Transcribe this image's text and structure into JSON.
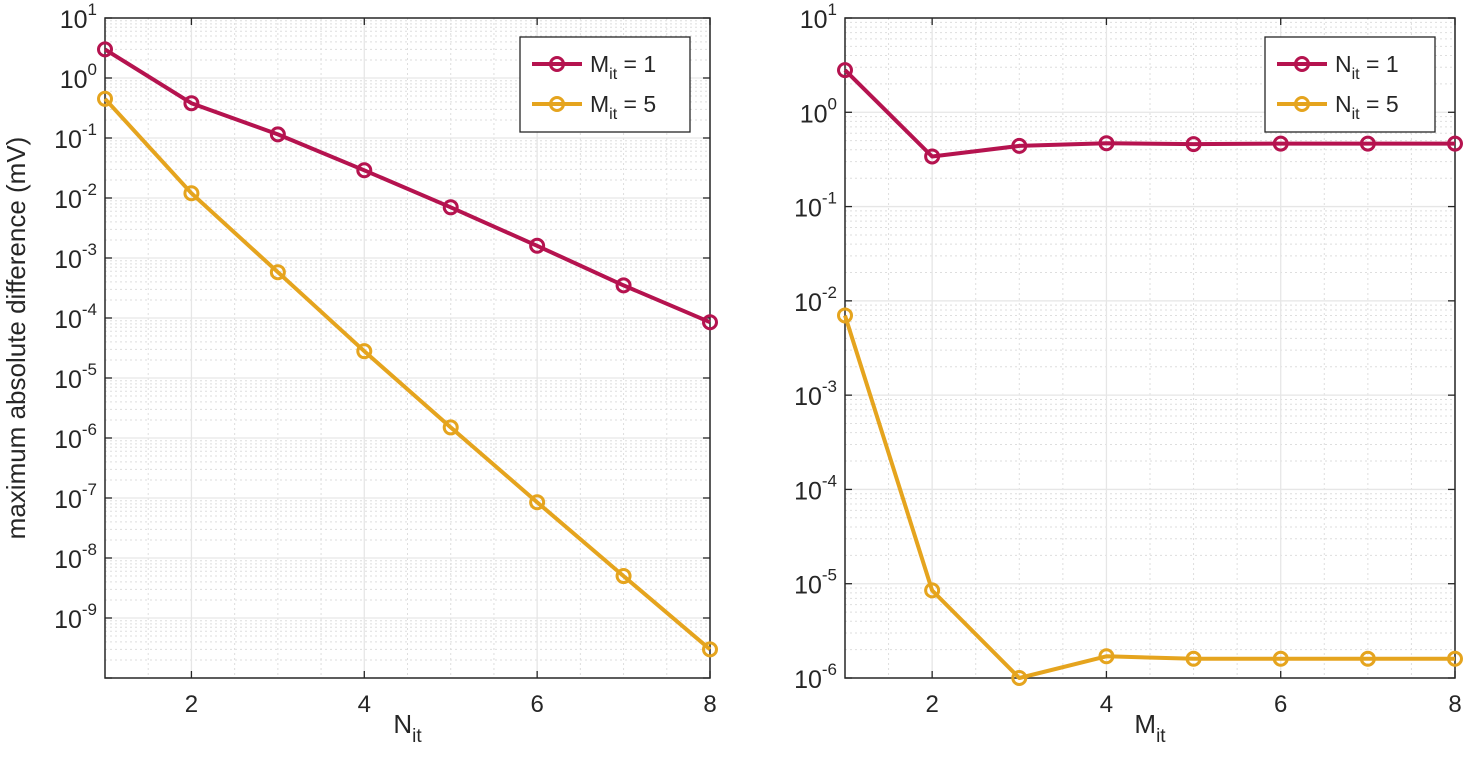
{
  "chart_data": [
    {
      "type": "line",
      "xlabel": {
        "base": "N",
        "sub": "it"
      },
      "ylabel": "maximum absolute difference (mV)",
      "yscale": "log",
      "xlim": [
        1,
        8
      ],
      "ylim_exp": [
        -10,
        1
      ],
      "xticks": [
        "2",
        "4",
        "6",
        "8"
      ],
      "yticks": [
        "10",
        "10",
        "10",
        "10",
        "10",
        "10",
        "10",
        "10",
        "10",
        "10",
        "10"
      ],
      "yticks_exp": [
        "1",
        "0",
        "-1",
        "-2",
        "-3",
        "-4",
        "-5",
        "-6",
        "-7",
        "-8",
        "-9"
      ],
      "grid": true,
      "legend_position": "top-right",
      "series": [
        {
          "name": {
            "base": "M",
            "sub": "it",
            "rest": " = 1"
          },
          "color": "#b5134f",
          "x": [
            1,
            2,
            3,
            4,
            5,
            6,
            7,
            8
          ],
          "y": [
            3.0,
            0.38,
            0.115,
            0.029,
            0.007,
            0.0016,
            0.00035,
            8.5e-05
          ]
        },
        {
          "name": {
            "base": "M",
            "sub": "it",
            "rest": " = 5"
          },
          "color": "#e5a41e",
          "x": [
            1,
            2,
            3,
            4,
            5,
            6,
            7,
            8
          ],
          "y": [
            0.45,
            0.012,
            0.00058,
            2.8e-05,
            1.5e-06,
            8.5e-08,
            5e-09,
            3e-10
          ]
        }
      ]
    },
    {
      "type": "line",
      "xlabel": {
        "base": "M",
        "sub": "it"
      },
      "ylabel": "",
      "yscale": "log",
      "xlim": [
        1,
        8
      ],
      "ylim_exp": [
        -6,
        1
      ],
      "xticks": [
        "2",
        "4",
        "6",
        "8"
      ],
      "yticks": [
        "10",
        "10",
        "10",
        "10",
        "10",
        "10",
        "10",
        "10"
      ],
      "yticks_exp": [
        "1",
        "0",
        "-1",
        "-2",
        "-3",
        "-4",
        "-5",
        "-6"
      ],
      "grid": true,
      "legend_position": "top-right",
      "series": [
        {
          "name": {
            "base": "N",
            "sub": "it",
            "rest": " = 1"
          },
          "color": "#b5134f",
          "x": [
            1,
            2,
            3,
            4,
            5,
            6,
            7,
            8
          ],
          "y": [
            2.8,
            0.34,
            0.44,
            0.47,
            0.46,
            0.465,
            0.465,
            0.465
          ]
        },
        {
          "name": {
            "base": "N",
            "sub": "it",
            "rest": " = 5"
          },
          "color": "#e5a41e",
          "x": [
            1,
            2,
            3,
            4,
            5,
            6,
            7,
            8
          ],
          "y": [
            0.007,
            8.5e-06,
            1e-06,
            1.7e-06,
            1.6e-06,
            1.6e-06,
            1.6e-06,
            1.6e-06
          ]
        }
      ]
    }
  ]
}
